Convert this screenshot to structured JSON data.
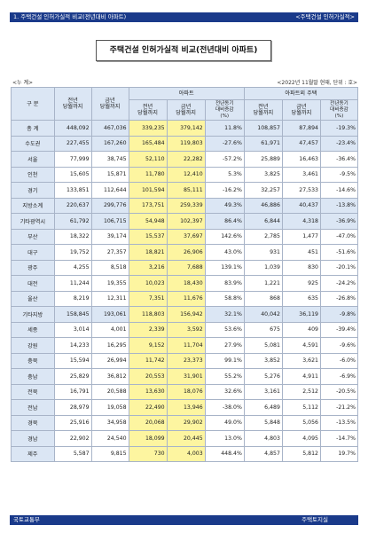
{
  "header": {
    "left": "1. 주택건설 인허가실적 비교(전년대비 아파트)",
    "right": "<주택건설 인허가실적>"
  },
  "title": "주택건설 인허가실적 비교(전년대비 아파트)",
  "unit_left": "<누 계>",
  "unit_right": "<2022년 11월말 현재, 단위 : 호>",
  "columns": {
    "region": "구 분",
    "prev_total": "전년\n당월까지",
    "curr_total": "금년\n당월까지",
    "apt_group": "아파트",
    "apt_prev": "전년\n당월까지",
    "apt_curr": "금년\n당월까지",
    "apt_change": "전년동기\n대비증감\n(%)",
    "other_group": "아파트외 주택",
    "other_prev": "전년\n당월까지",
    "other_curr": "금년\n당월까지",
    "other_change": "전년동기\n대비증감\n(%)"
  },
  "rows": [
    {
      "region": "총 계",
      "prev": "448,092",
      "curr": "467,036",
      "apt_prev": "339,235",
      "apt_curr": "379,142",
      "apt_chg": "11.8%",
      "oth_prev": "108,857",
      "oth_curr": "87,894",
      "oth_chg": "-19.3%",
      "sum": true
    },
    {
      "region": "수도권",
      "prev": "227,455",
      "curr": "167,260",
      "apt_prev": "165,484",
      "apt_curr": "119,803",
      "apt_chg": "-27.6%",
      "oth_prev": "61,971",
      "oth_curr": "47,457",
      "oth_chg": "-23.4%",
      "sum": true
    },
    {
      "region": "서울",
      "prev": "77,999",
      "curr": "38,745",
      "apt_prev": "52,110",
      "apt_curr": "22,282",
      "apt_chg": "-57.2%",
      "oth_prev": "25,889",
      "oth_curr": "16,463",
      "oth_chg": "-36.4%"
    },
    {
      "region": "인천",
      "prev": "15,605",
      "curr": "15,871",
      "apt_prev": "11,780",
      "apt_curr": "12,410",
      "apt_chg": "5.3%",
      "oth_prev": "3,825",
      "oth_curr": "3,461",
      "oth_chg": "-9.5%"
    },
    {
      "region": "경기",
      "prev": "133,851",
      "curr": "112,644",
      "apt_prev": "101,594",
      "apt_curr": "85,111",
      "apt_chg": "-16.2%",
      "oth_prev": "32,257",
      "oth_curr": "27,533",
      "oth_chg": "-14.6%"
    },
    {
      "region": "지방소계",
      "prev": "220,637",
      "curr": "299,776",
      "apt_prev": "173,751",
      "apt_curr": "259,339",
      "apt_chg": "49.3%",
      "oth_prev": "46,886",
      "oth_curr": "40,437",
      "oth_chg": "-13.8%",
      "sum": true
    },
    {
      "region": "기타광역시",
      "prev": "61,792",
      "curr": "106,715",
      "apt_prev": "54,948",
      "apt_curr": "102,397",
      "apt_chg": "86.4%",
      "oth_prev": "6,844",
      "oth_curr": "4,318",
      "oth_chg": "-36.9%",
      "sum": true
    },
    {
      "region": "부산",
      "prev": "18,322",
      "curr": "39,174",
      "apt_prev": "15,537",
      "apt_curr": "37,697",
      "apt_chg": "142.6%",
      "oth_prev": "2,785",
      "oth_curr": "1,477",
      "oth_chg": "-47.0%"
    },
    {
      "region": "대구",
      "prev": "19,752",
      "curr": "27,357",
      "apt_prev": "18,821",
      "apt_curr": "26,906",
      "apt_chg": "43.0%",
      "oth_prev": "931",
      "oth_curr": "451",
      "oth_chg": "-51.6%"
    },
    {
      "region": "광주",
      "prev": "4,255",
      "curr": "8,518",
      "apt_prev": "3,216",
      "apt_curr": "7,688",
      "apt_chg": "139.1%",
      "oth_prev": "1,039",
      "oth_curr": "830",
      "oth_chg": "-20.1%"
    },
    {
      "region": "대전",
      "prev": "11,244",
      "curr": "19,355",
      "apt_prev": "10,023",
      "apt_curr": "18,430",
      "apt_chg": "83.9%",
      "oth_prev": "1,221",
      "oth_curr": "925",
      "oth_chg": "-24.2%"
    },
    {
      "region": "울산",
      "prev": "8,219",
      "curr": "12,311",
      "apt_prev": "7,351",
      "apt_curr": "11,676",
      "apt_chg": "58.8%",
      "oth_prev": "868",
      "oth_curr": "635",
      "oth_chg": "-26.8%"
    },
    {
      "region": "기타지방",
      "prev": "158,845",
      "curr": "193,061",
      "apt_prev": "118,803",
      "apt_curr": "156,942",
      "apt_chg": "32.1%",
      "oth_prev": "40,042",
      "oth_curr": "36,119",
      "oth_chg": "-9.8%",
      "sum": true
    },
    {
      "region": "세종",
      "prev": "3,014",
      "curr": "4,001",
      "apt_prev": "2,339",
      "apt_curr": "3,592",
      "apt_chg": "53.6%",
      "oth_prev": "675",
      "oth_curr": "409",
      "oth_chg": "-39.4%"
    },
    {
      "region": "강원",
      "prev": "14,233",
      "curr": "16,295",
      "apt_prev": "9,152",
      "apt_curr": "11,704",
      "apt_chg": "27.9%",
      "oth_prev": "5,081",
      "oth_curr": "4,591",
      "oth_chg": "-9.6%"
    },
    {
      "region": "충북",
      "prev": "15,594",
      "curr": "26,994",
      "apt_prev": "11,742",
      "apt_curr": "23,373",
      "apt_chg": "99.1%",
      "oth_prev": "3,852",
      "oth_curr": "3,621",
      "oth_chg": "-6.0%"
    },
    {
      "region": "충남",
      "prev": "25,829",
      "curr": "36,812",
      "apt_prev": "20,553",
      "apt_curr": "31,901",
      "apt_chg": "55.2%",
      "oth_prev": "5,276",
      "oth_curr": "4,911",
      "oth_chg": "-6.9%"
    },
    {
      "region": "전북",
      "prev": "16,791",
      "curr": "20,588",
      "apt_prev": "13,630",
      "apt_curr": "18,076",
      "apt_chg": "32.6%",
      "oth_prev": "3,161",
      "oth_curr": "2,512",
      "oth_chg": "-20.5%"
    },
    {
      "region": "전남",
      "prev": "28,979",
      "curr": "19,058",
      "apt_prev": "22,490",
      "apt_curr": "13,946",
      "apt_chg": "-38.0%",
      "oth_prev": "6,489",
      "oth_curr": "5,112",
      "oth_chg": "-21.2%"
    },
    {
      "region": "경북",
      "prev": "25,916",
      "curr": "34,958",
      "apt_prev": "20,068",
      "apt_curr": "29,902",
      "apt_chg": "49.0%",
      "oth_prev": "5,848",
      "oth_curr": "5,056",
      "oth_chg": "-13.5%"
    },
    {
      "region": "경남",
      "prev": "22,902",
      "curr": "24,540",
      "apt_prev": "18,099",
      "apt_curr": "20,445",
      "apt_chg": "13.0%",
      "oth_prev": "4,803",
      "oth_curr": "4,095",
      "oth_chg": "-14.7%"
    },
    {
      "region": "제주",
      "prev": "5,587",
      "curr": "9,815",
      "apt_prev": "730",
      "apt_curr": "4,003",
      "apt_chg": "448.4%",
      "oth_prev": "4,857",
      "oth_curr": "5,812",
      "oth_chg": "19.7%"
    }
  ],
  "footer": {
    "left": "국토교통부",
    "right": "주택토지실"
  }
}
